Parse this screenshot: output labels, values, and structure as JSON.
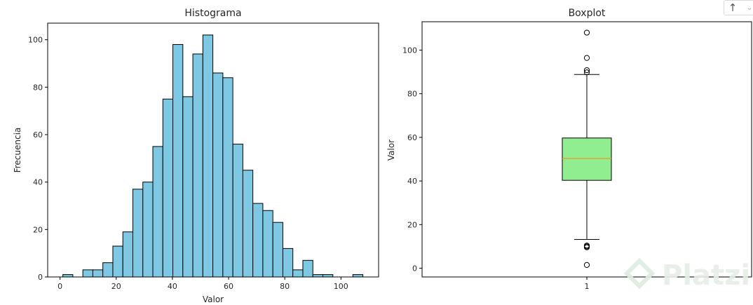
{
  "toolbar": {
    "up_glyph": "↑",
    "down_glyph": "⌄",
    "up_icon": "arrow-up-icon",
    "down_icon": "chevron-down-icon"
  },
  "watermark": {
    "text": "Platzi",
    "color": "#e6eee6"
  },
  "colors": {
    "hist_fill": "#7ec8e3",
    "box_fill": "#90ee90",
    "median": "#ff8c1a",
    "edge": "#000000"
  },
  "chart_data": [
    {
      "type": "bar",
      "subtype": "histogram",
      "title": "Histograma",
      "xlabel": "Valor",
      "ylabel": "Frecuencia",
      "xlim": [
        -4.4,
        113.4
      ],
      "ylim": [
        0,
        107
      ],
      "xticks": [
        0,
        20,
        40,
        60,
        80,
        100
      ],
      "yticks": [
        0,
        20,
        40,
        60,
        80,
        100
      ],
      "bin_start": 1.0,
      "bin_width": 3.56,
      "values": [
        1,
        0,
        3,
        3,
        6,
        13,
        19,
        37,
        40,
        55,
        75,
        98,
        76,
        94,
        102,
        86,
        84,
        56,
        45,
        31,
        28,
        23,
        12,
        3,
        7,
        1,
        1,
        0,
        0,
        1
      ],
      "grid": false,
      "legend": "none"
    },
    {
      "type": "boxplot",
      "title": "Boxplot",
      "xlabel": "",
      "ylabel": "Valor",
      "categories": [
        "1"
      ],
      "ylim": [
        -4.0,
        113.0
      ],
      "yticks": [
        0,
        20,
        40,
        60,
        80,
        100
      ],
      "q1": 40.3,
      "median": 50.3,
      "q3": 59.7,
      "whisker_low": 13.2,
      "whisker_high": 88.8,
      "outliers": [
        1.5,
        9.6,
        10.0,
        10.4,
        89.8,
        90.8,
        96.4,
        108.0
      ],
      "grid": false,
      "legend": "none"
    }
  ]
}
